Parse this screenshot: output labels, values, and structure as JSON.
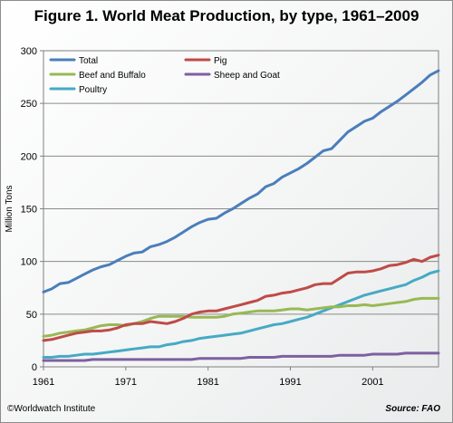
{
  "chart_data": {
    "type": "line",
    "title": "Figure 1. World Meat Production, by type, 1961–2009",
    "ylabel": "Million Tons",
    "xlabel": "",
    "xlim": [
      1961,
      2009
    ],
    "ylim": [
      0,
      300
    ],
    "x_ticks": [
      1961,
      1971,
      1981,
      1991,
      2001
    ],
    "y_ticks": [
      0,
      50,
      100,
      150,
      200,
      250,
      300
    ],
    "grid": "horizontal",
    "legend_position": "top-left",
    "x": [
      1961,
      1962,
      1963,
      1964,
      1965,
      1966,
      1967,
      1968,
      1969,
      1970,
      1971,
      1972,
      1973,
      1974,
      1975,
      1976,
      1977,
      1978,
      1979,
      1980,
      1981,
      1982,
      1983,
      1984,
      1985,
      1986,
      1987,
      1988,
      1989,
      1990,
      1991,
      1992,
      1993,
      1994,
      1995,
      1996,
      1997,
      1998,
      1999,
      2000,
      2001,
      2002,
      2003,
      2004,
      2005,
      2006,
      2007,
      2008,
      2009
    ],
    "series": [
      {
        "name": "Total",
        "color": "#4a7ebb",
        "values": [
          71,
          74,
          79,
          80,
          84,
          88,
          92,
          95,
          97,
          101,
          105,
          108,
          109,
          114,
          116,
          119,
          123,
          128,
          133,
          137,
          140,
          141,
          146,
          150,
          155,
          160,
          164,
          171,
          174,
          180,
          184,
          188,
          193,
          199,
          205,
          207,
          215,
          223,
          228,
          233,
          236,
          242,
          247,
          252,
          258,
          264,
          270,
          277,
          281
        ]
      },
      {
        "name": "Pig",
        "color": "#be4b48",
        "values": [
          25,
          26,
          28,
          30,
          32,
          33,
          34,
          34,
          35,
          37,
          40,
          41,
          41,
          43,
          42,
          41,
          43,
          46,
          50,
          52,
          53,
          53,
          55,
          57,
          59,
          61,
          63,
          67,
          68,
          70,
          71,
          73,
          75,
          78,
          79,
          79,
          84,
          89,
          90,
          90,
          91,
          93,
          96,
          97,
          99,
          102,
          100,
          104,
          106
        ]
      },
      {
        "name": "Beef and Buffalo",
        "color": "#98b954",
        "values": [
          29,
          30,
          32,
          33,
          34,
          35,
          37,
          39,
          40,
          40,
          39,
          41,
          43,
          46,
          48,
          48,
          48,
          48,
          47,
          47,
          47,
          47,
          48,
          50,
          51,
          52,
          53,
          53,
          53,
          54,
          55,
          55,
          54,
          55,
          56,
          57,
          57,
          58,
          58,
          59,
          58,
          59,
          60,
          61,
          62,
          64,
          65,
          65,
          65
        ]
      },
      {
        "name": "Sheep and Goat",
        "color": "#7d60a0",
        "values": [
          6,
          6,
          6,
          6,
          6,
          6,
          7,
          7,
          7,
          7,
          7,
          7,
          7,
          7,
          7,
          7,
          7,
          7,
          7,
          8,
          8,
          8,
          8,
          8,
          8,
          9,
          9,
          9,
          9,
          10,
          10,
          10,
          10,
          10,
          10,
          10,
          11,
          11,
          11,
          11,
          12,
          12,
          12,
          12,
          13,
          13,
          13,
          13,
          13
        ]
      },
      {
        "name": "Poultry",
        "color": "#46aac4",
        "values": [
          9,
          9,
          10,
          10,
          11,
          12,
          12,
          13,
          14,
          15,
          16,
          17,
          18,
          19,
          19,
          21,
          22,
          24,
          25,
          27,
          28,
          29,
          30,
          31,
          32,
          34,
          36,
          38,
          40,
          41,
          43,
          45,
          47,
          50,
          53,
          56,
          59,
          62,
          65,
          68,
          70,
          72,
          74,
          76,
          78,
          82,
          85,
          89,
          91
        ]
      }
    ]
  },
  "footer": {
    "credit": "©Worldwatch Institute",
    "source": "Source: FAO"
  }
}
